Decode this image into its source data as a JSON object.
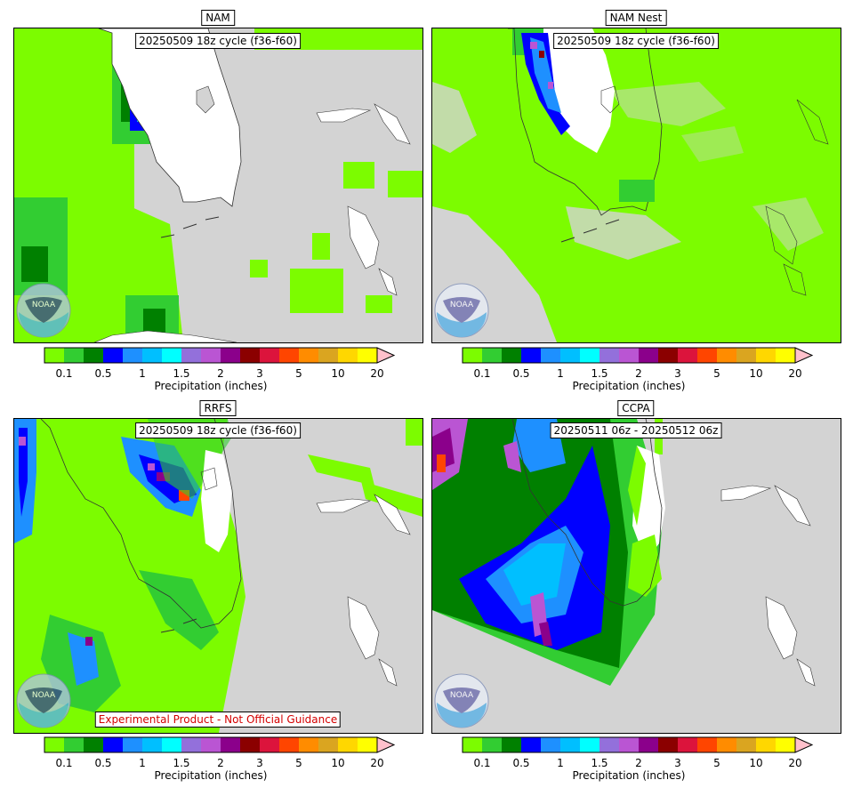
{
  "panels": [
    {
      "model": "NAM",
      "cycle": "20250509 18z cycle (f36-f60)"
    },
    {
      "model": "NAM Nest",
      "cycle": "20250509 18z cycle (f36-f60)"
    },
    {
      "model": "RRFS",
      "cycle": "20250509 18z cycle (f36-f60)",
      "disclaimer": "Experimental Product - Not Official Guidance"
    },
    {
      "model": "CCPA",
      "cycle": "20250511 06z - 20250512 06z"
    }
  ],
  "colorbar": {
    "label": "Precipitation (inches)",
    "ticks": [
      "0.1",
      "0.5",
      "1",
      "1.5",
      "2",
      "3",
      "5",
      "10",
      "20"
    ],
    "colors": [
      "#7cfc00",
      "#32cd32",
      "#008000",
      "#0000ff",
      "#1e90ff",
      "#00bfff",
      "#00ffff",
      "#9370db",
      "#ba55d3",
      "#8b008b",
      "#8b0000",
      "#dc143c",
      "#ff4500",
      "#ff8c00",
      "#daa520",
      "#ffd700",
      "#ffff00"
    ],
    "extend_color": "#ffc0cb"
  },
  "map": {
    "ocean_color": "#d3d3d3",
    "land_color": "#ffffff",
    "logo_text": "NOAA"
  }
}
